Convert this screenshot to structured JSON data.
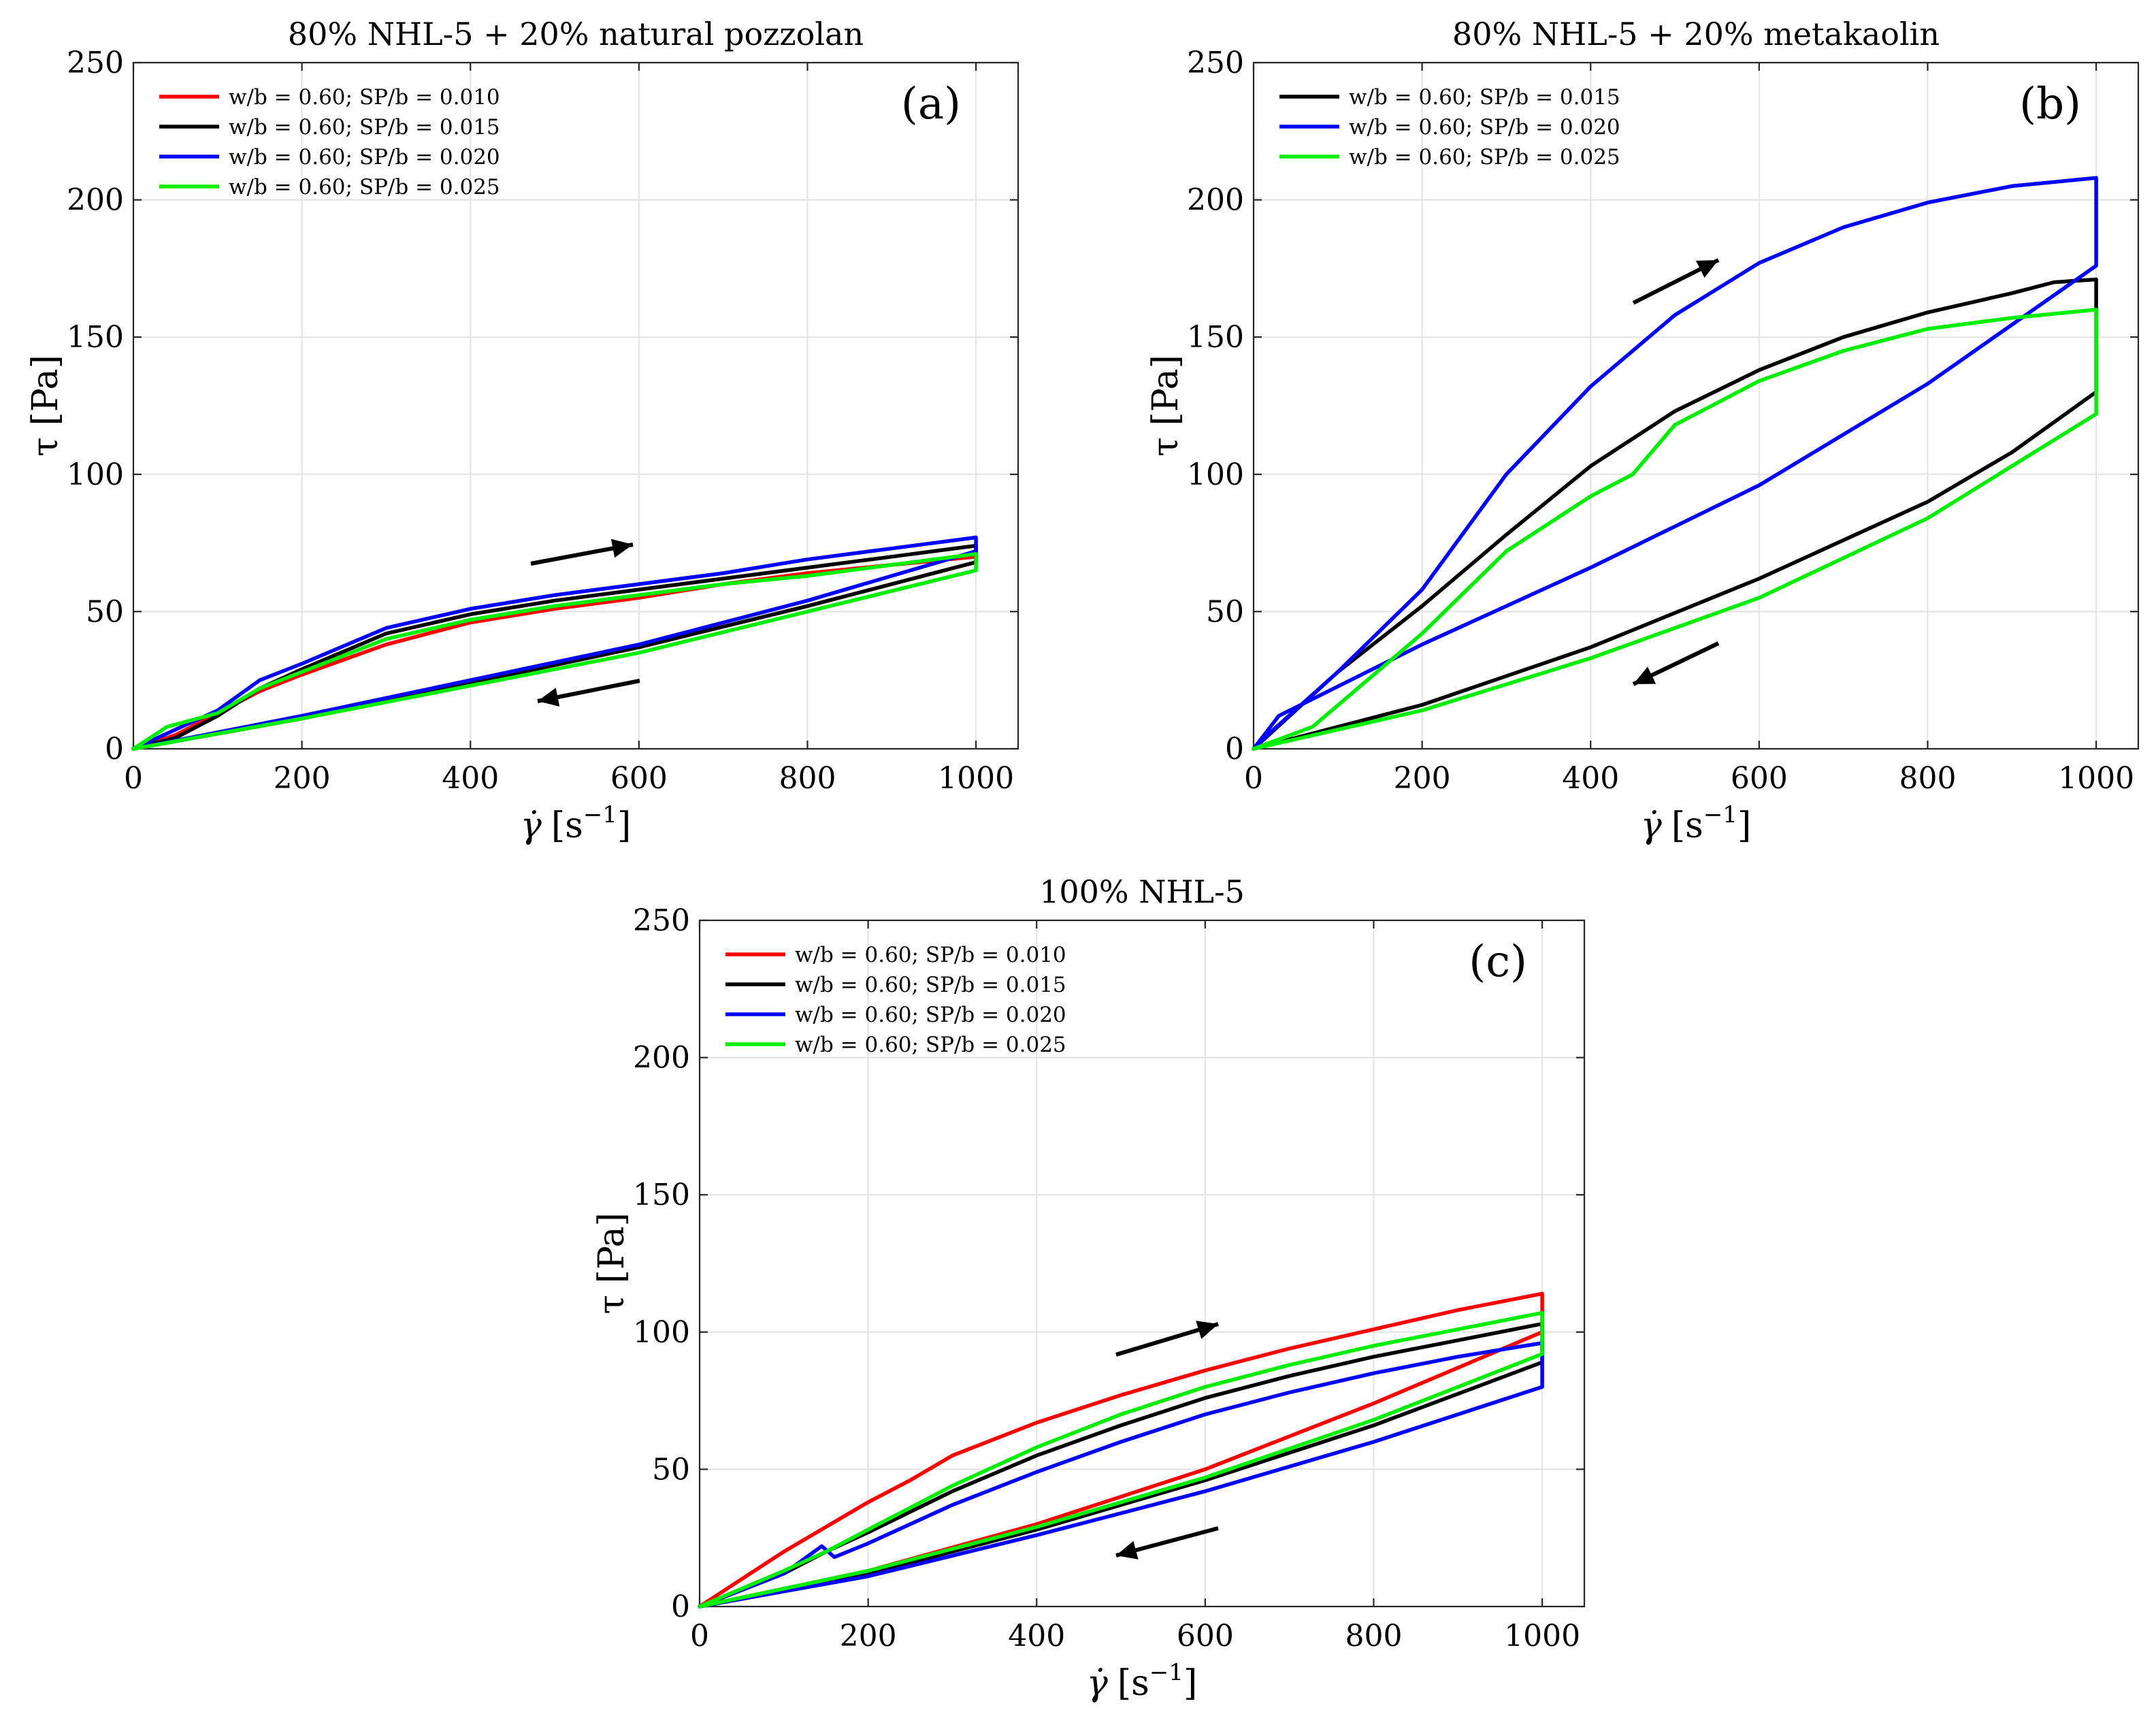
{
  "figure": {
    "xlabel_symbol": "γ̇",
    "xlabel_units": "[s",
    "xlabel_exp": "−1",
    "xlabel_close": "]",
    "ylabel": "τ [Pa]",
    "legend_prefix": "w/b = 0.60; SP/b = "
  },
  "chart_data": [
    {
      "type": "line",
      "panel": "(a)",
      "title": "80% NHL-5 + 20% natural pozzolan",
      "xlabel": "γ̇ [s−1]",
      "ylabel": "τ [Pa]",
      "xlim": [
        0,
        1050
      ],
      "ylim": [
        0,
        250
      ],
      "xticks": [
        "0",
        "200",
        "400",
        "600",
        "800",
        "1000"
      ],
      "yticks": [
        "0",
        "50",
        "100",
        "150",
        "200",
        "250"
      ],
      "grid": true,
      "legend_position": "top-left",
      "arrows": [
        "up-curve",
        "down-curve"
      ],
      "series": [
        {
          "name": "w/b = 0.60; SP/b = 0.010",
          "color": "#ff0000",
          "up": [
            [
              0,
              0
            ],
            [
              50,
              5
            ],
            [
              100,
              13
            ],
            [
              150,
              21
            ],
            [
              200,
              27
            ],
            [
              300,
              38
            ],
            [
              400,
              46
            ],
            [
              500,
              51
            ],
            [
              600,
              55
            ],
            [
              700,
              60
            ],
            [
              800,
              64
            ],
            [
              900,
              67
            ],
            [
              1000,
              70
            ]
          ],
          "down": [
            [
              1000,
              68
            ],
            [
              800,
              52
            ],
            [
              600,
              37
            ],
            [
              400,
              24
            ],
            [
              200,
              11
            ],
            [
              0,
              0
            ]
          ]
        },
        {
          "name": "w/b = 0.60; SP/b = 0.015",
          "color": "#000000",
          "up": [
            [
              0,
              0
            ],
            [
              50,
              4
            ],
            [
              100,
              12
            ],
            [
              150,
              22
            ],
            [
              200,
              29
            ],
            [
              300,
              42
            ],
            [
              400,
              49
            ],
            [
              500,
              54
            ],
            [
              600,
              58
            ],
            [
              700,
              62
            ],
            [
              800,
              66
            ],
            [
              900,
              70
            ],
            [
              1000,
              74
            ]
          ],
          "down": [
            [
              1000,
              68
            ],
            [
              800,
              52
            ],
            [
              600,
              37
            ],
            [
              400,
              24
            ],
            [
              200,
              11
            ],
            [
              0,
              0
            ]
          ]
        },
        {
          "name": "w/b = 0.60; SP/b = 0.020",
          "color": "#0000ff",
          "up": [
            [
              0,
              0
            ],
            [
              50,
              7
            ],
            [
              100,
              14
            ],
            [
              150,
              25
            ],
            [
              200,
              31
            ],
            [
              300,
              44
            ],
            [
              400,
              51
            ],
            [
              500,
              56
            ],
            [
              600,
              60
            ],
            [
              700,
              64
            ],
            [
              800,
              69
            ],
            [
              900,
              73
            ],
            [
              1000,
              77
            ]
          ],
          "down": [
            [
              1000,
              72
            ],
            [
              800,
              54
            ],
            [
              600,
              38
            ],
            [
              400,
              25
            ],
            [
              200,
              12
            ],
            [
              0,
              0
            ]
          ]
        },
        {
          "name": "w/b = 0.60; SP/b = 0.025",
          "color": "#00ee00",
          "up": [
            [
              0,
              0
            ],
            [
              40,
              8
            ],
            [
              100,
              13
            ],
            [
              150,
              22
            ],
            [
              200,
              28
            ],
            [
              300,
              40
            ],
            [
              400,
              47
            ],
            [
              500,
              52
            ],
            [
              600,
              56
            ],
            [
              700,
              60
            ],
            [
              800,
              63
            ],
            [
              900,
              67
            ],
            [
              1000,
              71
            ]
          ],
          "down": [
            [
              1000,
              65
            ],
            [
              800,
              50
            ],
            [
              600,
              35
            ],
            [
              400,
              23
            ],
            [
              200,
              11
            ],
            [
              0,
              0
            ]
          ]
        }
      ]
    },
    {
      "type": "line",
      "panel": "(b)",
      "title": "80% NHL-5 + 20% metakaolin",
      "xlabel": "γ̇ [s−1]",
      "ylabel": "τ [Pa]",
      "xlim": [
        0,
        1050
      ],
      "ylim": [
        0,
        250
      ],
      "xticks": [
        "0",
        "200",
        "400",
        "600",
        "800",
        "1000"
      ],
      "yticks": [
        "0",
        "50",
        "100",
        "150",
        "200",
        "250"
      ],
      "grid": true,
      "legend_position": "top-left",
      "arrows": [
        "up-curve",
        "down-curve"
      ],
      "series": [
        {
          "name": "w/b = 0.60; SP/b = 0.015",
          "color": "#000000",
          "up": [
            [
              0,
              0
            ],
            [
              100,
              28
            ],
            [
              200,
              52
            ],
            [
              300,
              78
            ],
            [
              400,
              103
            ],
            [
              500,
              123
            ],
            [
              600,
              138
            ],
            [
              700,
              150
            ],
            [
              800,
              159
            ],
            [
              900,
              166
            ],
            [
              950,
              170
            ],
            [
              1000,
              171
            ]
          ],
          "down": [
            [
              1000,
              130
            ],
            [
              900,
              108
            ],
            [
              800,
              90
            ],
            [
              600,
              62
            ],
            [
              400,
              37
            ],
            [
              200,
              16
            ],
            [
              0,
              0
            ]
          ]
        },
        {
          "name": "w/b = 0.60; SP/b = 0.020",
          "color": "#0000ff",
          "up": [
            [
              0,
              0
            ],
            [
              20,
              6
            ],
            [
              100,
              28
            ],
            [
              200,
              58
            ],
            [
              300,
              100
            ],
            [
              400,
              132
            ],
            [
              500,
              158
            ],
            [
              600,
              177
            ],
            [
              700,
              190
            ],
            [
              800,
              199
            ],
            [
              900,
              205
            ],
            [
              1000,
              208
            ]
          ],
          "down": [
            [
              1000,
              176
            ],
            [
              800,
              133
            ],
            [
              600,
              96
            ],
            [
              400,
              66
            ],
            [
              200,
              38
            ],
            [
              30,
              12
            ],
            [
              0,
              0
            ]
          ]
        },
        {
          "name": "w/b = 0.60; SP/b = 0.025",
          "color": "#00ee00",
          "up": [
            [
              0,
              0
            ],
            [
              70,
              8
            ],
            [
              200,
              42
            ],
            [
              300,
              72
            ],
            [
              400,
              92
            ],
            [
              450,
              100
            ],
            [
              500,
              118
            ],
            [
              600,
              134
            ],
            [
              700,
              145
            ],
            [
              800,
              153
            ],
            [
              900,
              157
            ],
            [
              1000,
              160
            ]
          ],
          "down": [
            [
              1000,
              122
            ],
            [
              800,
              84
            ],
            [
              600,
              55
            ],
            [
              400,
              33
            ],
            [
              200,
              14
            ],
            [
              0,
              0
            ]
          ]
        }
      ]
    },
    {
      "type": "line",
      "panel": "(c)",
      "title": "100% NHL-5",
      "xlabel": "γ̇ [s−1]",
      "ylabel": "τ [Pa]",
      "xlim": [
        0,
        1050
      ],
      "ylim": [
        0,
        250
      ],
      "xticks": [
        "0",
        "200",
        "400",
        "600",
        "800",
        "1000"
      ],
      "yticks": [
        "0",
        "50",
        "100",
        "150",
        "200",
        "250"
      ],
      "grid": true,
      "legend_position": "top-left",
      "arrows": [
        "up-curve",
        "down-curve"
      ],
      "series": [
        {
          "name": "w/b = 0.60; SP/b = 0.010",
          "color": "#ff0000",
          "up": [
            [
              0,
              0
            ],
            [
              100,
              20
            ],
            [
              200,
              38
            ],
            [
              250,
              46
            ],
            [
              300,
              55
            ],
            [
              400,
              67
            ],
            [
              500,
              77
            ],
            [
              600,
              86
            ],
            [
              700,
              94
            ],
            [
              800,
              101
            ],
            [
              900,
              108
            ],
            [
              1000,
              114
            ]
          ],
          "down": [
            [
              1000,
              100
            ],
            [
              800,
              74
            ],
            [
              600,
              50
            ],
            [
              400,
              30
            ],
            [
              200,
              13
            ],
            [
              0,
              0
            ]
          ]
        },
        {
          "name": "w/b = 0.60; SP/b = 0.015",
          "color": "#000000",
          "up": [
            [
              0,
              0
            ],
            [
              100,
              12
            ],
            [
              150,
              20
            ],
            [
              200,
              27
            ],
            [
              300,
              42
            ],
            [
              400,
              55
            ],
            [
              500,
              66
            ],
            [
              600,
              76
            ],
            [
              700,
              84
            ],
            [
              800,
              91
            ],
            [
              900,
              97
            ],
            [
              1000,
              103
            ]
          ],
          "down": [
            [
              1000,
              89
            ],
            [
              800,
              66
            ],
            [
              600,
              46
            ],
            [
              400,
              28
            ],
            [
              200,
              12
            ],
            [
              0,
              0
            ]
          ]
        },
        {
          "name": "w/b = 0.60; SP/b = 0.020",
          "color": "#0000ff",
          "up": [
            [
              0,
              0
            ],
            [
              100,
              12
            ],
            [
              145,
              22
            ],
            [
              160,
              18
            ],
            [
              200,
              23
            ],
            [
              300,
              37
            ],
            [
              400,
              49
            ],
            [
              500,
              60
            ],
            [
              600,
              70
            ],
            [
              700,
              78
            ],
            [
              800,
              85
            ],
            [
              900,
              91
            ],
            [
              1000,
              96
            ]
          ],
          "down": [
            [
              1000,
              80
            ],
            [
              800,
              60
            ],
            [
              600,
              42
            ],
            [
              400,
              26
            ],
            [
              200,
              11
            ],
            [
              0,
              0
            ]
          ]
        },
        {
          "name": "w/b = 0.60; SP/b = 0.025",
          "color": "#00ee00",
          "up": [
            [
              0,
              0
            ],
            [
              100,
              13
            ],
            [
              150,
              20
            ],
            [
              200,
              28
            ],
            [
              300,
              44
            ],
            [
              400,
              58
            ],
            [
              500,
              70
            ],
            [
              600,
              80
            ],
            [
              700,
              88
            ],
            [
              800,
              95
            ],
            [
              900,
              101
            ],
            [
              1000,
              107
            ]
          ],
          "down": [
            [
              1000,
              92
            ],
            [
              800,
              68
            ],
            [
              600,
              47
            ],
            [
              400,
              29
            ],
            [
              200,
              13
            ],
            [
              0,
              0
            ]
          ]
        }
      ]
    }
  ]
}
